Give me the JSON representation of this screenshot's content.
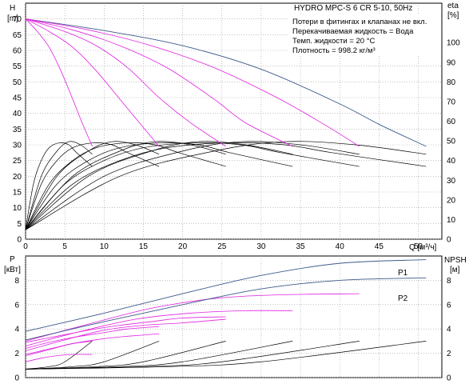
{
  "colors": {
    "head_outer": "#3d5a8a",
    "performance": "#e020e0",
    "efficiency": "#000000",
    "power_p1": "#3d5a8a",
    "power_p2": "#3d5a8a",
    "power_partial": "#e020e0",
    "npsh": "#000000"
  },
  "title": "HYDRO MPC-S 6 CR 5-10, 50Hz",
  "info_lines": [
    "Потери в фитингах и клапанах не вкл.",
    "Перекачиваемая жидкость = Вода",
    "Темп. жидкости = 20 °C",
    "Плотность = 998.2 кг/м³"
  ],
  "chart_data": [
    {
      "type": "line",
      "name": "head-efficiency",
      "xlabel": "Q [м³/ч]",
      "ylabel_left": "H",
      "ylabel_left_unit": "[m]",
      "ylabel_right": "eta",
      "ylabel_right_unit": "[%]",
      "xlim": [
        0,
        53
      ],
      "ylim_left": [
        0,
        75
      ],
      "ylim_right": [
        0,
        120
      ],
      "x_ticks": [
        0,
        5,
        10,
        15,
        20,
        25,
        30,
        35,
        40,
        45,
        50
      ],
      "y_left_ticks": [
        0,
        5,
        10,
        15,
        20,
        25,
        30,
        35,
        40,
        45,
        50,
        55,
        60,
        65,
        70
      ],
      "y_right_ticks": [
        0,
        10,
        20,
        30,
        40,
        50,
        60,
        70,
        80,
        90,
        100
      ],
      "grid": true,
      "head_curves": [
        {
          "pumps": 6,
          "points": [
            [
              0,
              70
            ],
            [
              10,
              66.3
            ],
            [
              20,
              61.5
            ],
            [
              30,
              54
            ],
            [
              40,
              43
            ],
            [
              45,
              36.5
            ],
            [
              51,
              29.5
            ]
          ]
        },
        {
          "pumps": 5,
          "points": [
            [
              0,
              70
            ],
            [
              8,
              66.5
            ],
            [
              16,
              61.5
            ],
            [
              24,
              54.5
            ],
            [
              32,
              45
            ],
            [
              38,
              36.5
            ],
            [
              42.5,
              29.5
            ]
          ]
        },
        {
          "pumps": 4,
          "points": [
            [
              0,
              70
            ],
            [
              6,
              66.5
            ],
            [
              12,
              61.5
            ],
            [
              18,
              54.5
            ],
            [
              24,
              44.5
            ],
            [
              28,
              37
            ],
            [
              34,
              29.5
            ]
          ]
        },
        {
          "pumps": 3,
          "points": [
            [
              0,
              70
            ],
            [
              5,
              66
            ],
            [
              9,
              61.5
            ],
            [
              13,
              54.5
            ],
            [
              17,
              45
            ],
            [
              21,
              37
            ],
            [
              25.5,
              29.5
            ]
          ]
        },
        {
          "pumps": 2,
          "points": [
            [
              0,
              70
            ],
            [
              3,
              66
            ],
            [
              6,
              61
            ],
            [
              9,
              53.5
            ],
            [
              12,
              44.5
            ],
            [
              14.5,
              37
            ],
            [
              17,
              29.5
            ]
          ]
        },
        {
          "pumps": 1,
          "points": [
            [
              0,
              70
            ],
            [
              1.5,
              66
            ],
            [
              3,
              61
            ],
            [
              4.5,
              53.5
            ],
            [
              6,
              44.5
            ],
            [
              7.2,
              37
            ],
            [
              8.5,
              29.5
            ]
          ]
        }
      ],
      "efficiency_curves": [
        {
          "pumps": 1,
          "points": [
            [
              0,
              5
            ],
            [
              1,
              28
            ],
            [
              2,
              40
            ],
            [
              3,
              46.5
            ],
            [
              4.3,
              49
            ],
            [
              5.5,
              48
            ],
            [
              6.5,
              44
            ],
            [
              8.5,
              37
            ]
          ]
        },
        {
          "pumps": 2,
          "points": [
            [
              0,
              5
            ],
            [
              2,
              28
            ],
            [
              4,
              40
            ],
            [
              6,
              46.5
            ],
            [
              8.6,
              49
            ],
            [
              11,
              48
            ],
            [
              13,
              44
            ],
            [
              17,
              37
            ]
          ]
        },
        {
          "pumps": 3,
          "points": [
            [
              0,
              5
            ],
            [
              3,
              28
            ],
            [
              6,
              40
            ],
            [
              9,
              46.5
            ],
            [
              12.9,
              49
            ],
            [
              16.5,
              48
            ],
            [
              19.5,
              44
            ],
            [
              25.5,
              37
            ]
          ]
        },
        {
          "pumps": 4,
          "points": [
            [
              0,
              5
            ],
            [
              4,
              28
            ],
            [
              8,
              40
            ],
            [
              12,
              46.5
            ],
            [
              17.2,
              49
            ],
            [
              22,
              48
            ],
            [
              26,
              44
            ],
            [
              34,
              37
            ]
          ]
        },
        {
          "pumps": 5,
          "points": [
            [
              0,
              5
            ],
            [
              5,
              28
            ],
            [
              10,
              40
            ],
            [
              15,
              46.5
            ],
            [
              21.5,
              49
            ],
            [
              27.5,
              48
            ],
            [
              32.5,
              44
            ],
            [
              42.5,
              37
            ]
          ]
        },
        {
          "pumps": 6,
          "points": [
            [
              0,
              5
            ],
            [
              6,
              28
            ],
            [
              12,
              40
            ],
            [
              18,
              46.5
            ],
            [
              25.8,
              49
            ],
            [
              33,
              48
            ],
            [
              39,
              44
            ],
            [
              51,
              37
            ]
          ]
        }
      ],
      "power_efficiency_curves": [
        {
          "points": [
            [
              0,
              3
            ],
            [
              2,
              20
            ],
            [
              4,
              28
            ],
            [
              5.5,
              31
            ],
            [
              7,
              30
            ],
            [
              8.5,
              27
            ]
          ]
        },
        {
          "points": [
            [
              0,
              3
            ],
            [
              4,
              20
            ],
            [
              8,
              28
            ],
            [
              11,
              31
            ],
            [
              14,
              30
            ],
            [
              17,
              27
            ]
          ]
        },
        {
          "points": [
            [
              0,
              3
            ],
            [
              6,
              20
            ],
            [
              12,
              28
            ],
            [
              16.5,
              31
            ],
            [
              21,
              30
            ],
            [
              25.5,
              27
            ]
          ]
        },
        {
          "points": [
            [
              0,
              3
            ],
            [
              8,
              20
            ],
            [
              16,
              28
            ],
            [
              22,
              31
            ],
            [
              28,
              30
            ],
            [
              34,
              27
            ]
          ]
        },
        {
          "points": [
            [
              0,
              3
            ],
            [
              10,
              20
            ],
            [
              20,
              28
            ],
            [
              27.5,
              31
            ],
            [
              35,
              30
            ],
            [
              42.5,
              27
            ]
          ]
        },
        {
          "points": [
            [
              0,
              3
            ],
            [
              12,
              20
            ],
            [
              24,
              28
            ],
            [
              33,
              31
            ],
            [
              42,
              30
            ],
            [
              51,
              27
            ]
          ]
        }
      ]
    },
    {
      "type": "line",
      "name": "power-npsh",
      "ylabel_left": "P",
      "ylabel_left_unit": "[кВт]",
      "ylabel_right": "NPSH",
      "ylabel_right_unit": "[м]",
      "xlim": [
        0,
        53
      ],
      "ylim_left": [
        0,
        10
      ],
      "ylim_right": [
        0,
        10
      ],
      "y_left_ticks": [
        0,
        2,
        4,
        6,
        8
      ],
      "y_right_ticks": [
        0,
        2,
        4,
        6,
        8
      ],
      "grid": true,
      "series": [
        {
          "name": "P1",
          "points": [
            [
              0,
              3.8
            ],
            [
              10,
              5.3
            ],
            [
              20,
              6.9
            ],
            [
              30,
              8.4
            ],
            [
              40,
              9.4
            ],
            [
              51,
              9.7
            ]
          ]
        },
        {
          "name": "P2",
          "points": [
            [
              0,
              3.1
            ],
            [
              10,
              4.6
            ],
            [
              20,
              6.0
            ],
            [
              30,
              7.3
            ],
            [
              40,
              8.0
            ],
            [
              51,
              8.2
            ]
          ]
        }
      ],
      "partial_power_curves": [
        {
          "points": [
            [
              0,
              3.0
            ],
            [
              8,
              4.4
            ],
            [
              16,
              5.7
            ],
            [
              24,
              6.5
            ],
            [
              32,
              6.8
            ],
            [
              42.5,
              6.9
            ]
          ]
        },
        {
          "points": [
            [
              0,
              2.6
            ],
            [
              7,
              3.8
            ],
            [
              14,
              4.8
            ],
            [
              21,
              5.3
            ],
            [
              28,
              5.5
            ],
            [
              34,
              5.5
            ]
          ]
        },
        {
          "points": [
            [
              0,
              2.2
            ],
            [
              5,
              3.1
            ],
            [
              10,
              3.9
            ],
            [
              15,
              4.3
            ],
            [
              20,
              4.5
            ],
            [
              25.5,
              4.8
            ]
          ]
        },
        {
          "points": [
            [
              0,
              1.8
            ],
            [
              3,
              2.3
            ],
            [
              6,
              2.8
            ],
            [
              10,
              3.2
            ],
            [
              13,
              3.4
            ],
            [
              17,
              3.6
            ]
          ]
        },
        {
          "points": [
            [
              0,
              1.3
            ],
            [
              2,
              1.6
            ],
            [
              4,
              1.8
            ],
            [
              6,
              1.9
            ],
            [
              8.5,
              1.9
            ]
          ]
        },
        {
          "points": [
            [
              0,
              2.9
            ],
            [
              4,
              3.4
            ],
            [
              8,
              3.9
            ],
            [
              12,
              4.3
            ],
            [
              16,
              4.6
            ],
            [
              20,
              4.9
            ],
            [
              25.5,
              5.0
            ]
          ]
        },
        {
          "points": [
            [
              0,
              2.4
            ],
            [
              3,
              2.9
            ],
            [
              6,
              3.3
            ],
            [
              10,
              3.7
            ],
            [
              13,
              4.0
            ],
            [
              17,
              4.2
            ]
          ]
        },
        {
          "points": [
            [
              0,
              1.9
            ],
            [
              2,
              2.2
            ],
            [
              4,
              2.5
            ],
            [
              6,
              2.8
            ],
            [
              8.5,
              3.0
            ]
          ]
        }
      ],
      "npsh_curves": [
        {
          "points": [
            [
              0,
              0.7
            ],
            [
              3,
              0.9
            ],
            [
              5,
              1.3
            ],
            [
              8.5,
              3.0
            ]
          ]
        },
        {
          "points": [
            [
              0,
              0.7
            ],
            [
              6,
              0.9
            ],
            [
              10,
              1.3
            ],
            [
              17,
              3.0
            ]
          ]
        },
        {
          "points": [
            [
              0,
              0.7
            ],
            [
              9,
              0.9
            ],
            [
              15,
              1.3
            ],
            [
              25.5,
              3.0
            ]
          ]
        },
        {
          "points": [
            [
              0,
              0.7
            ],
            [
              12,
              0.9
            ],
            [
              20,
              1.3
            ],
            [
              34,
              3.0
            ]
          ]
        },
        {
          "points": [
            [
              0,
              0.7
            ],
            [
              15,
              0.9
            ],
            [
              25,
              1.3
            ],
            [
              42.5,
              3.0
            ]
          ]
        },
        {
          "points": [
            [
              0,
              0.7
            ],
            [
              18,
              0.9
            ],
            [
              30,
              1.3
            ],
            [
              51,
              3.0
            ]
          ]
        }
      ]
    }
  ]
}
